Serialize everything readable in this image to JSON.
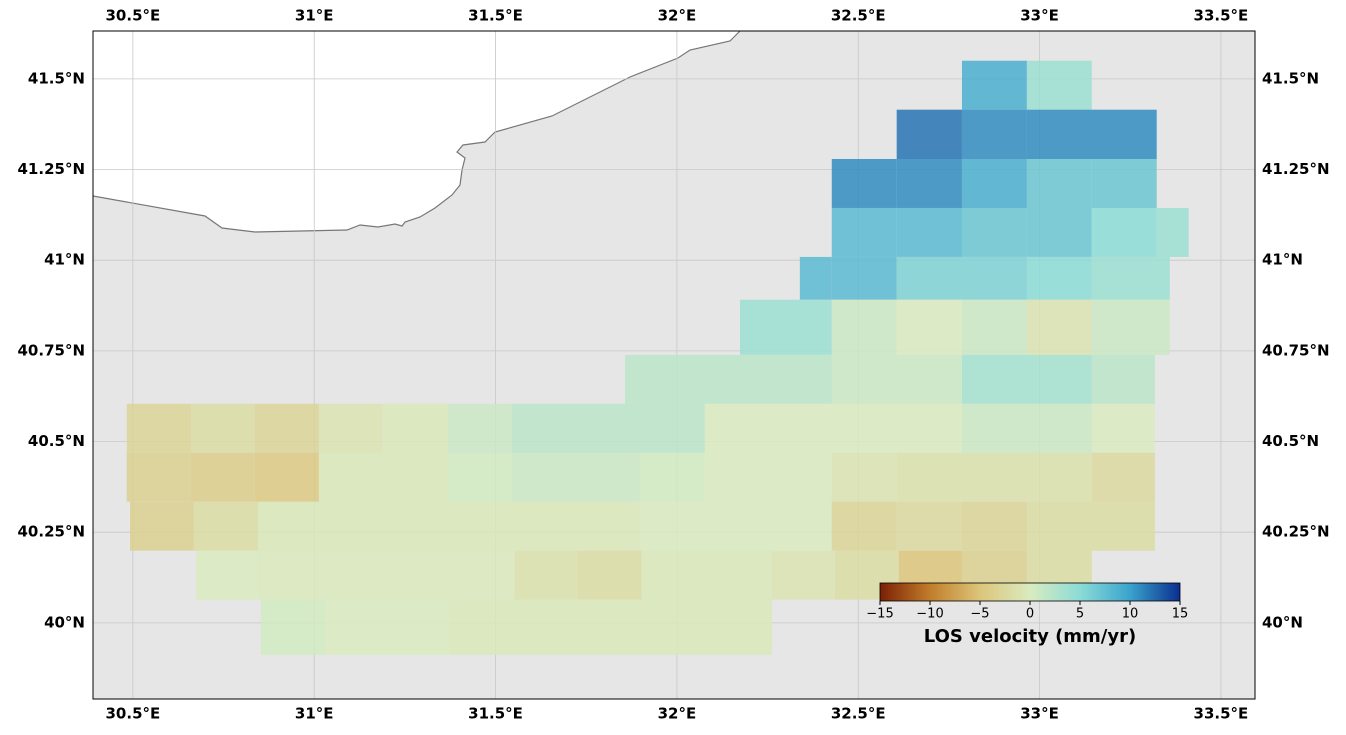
{
  "chart_data": {
    "type": "tilemap",
    "xlim": [
      30.39,
      33.594
    ],
    "ylim": [
      39.79,
      41.632
    ],
    "xticks": [
      {
        "value": 30.5,
        "label": "30.5°E"
      },
      {
        "value": 31,
        "label": "31°E"
      },
      {
        "value": 31.5,
        "label": "31.5°E"
      },
      {
        "value": 32,
        "label": "32°E"
      },
      {
        "value": 32.5,
        "label": "32.5°E"
      },
      {
        "value": 33,
        "label": "33°E"
      },
      {
        "value": 33.5,
        "label": "33.5°E"
      }
    ],
    "yticks": [
      {
        "value": 40,
        "label": "40°N"
      },
      {
        "value": 40.25,
        "label": "40.25°N"
      },
      {
        "value": 40.5,
        "label": "40.5°N"
      },
      {
        "value": 40.75,
        "label": "40.75°N"
      },
      {
        "value": 41,
        "label": "41°N"
      },
      {
        "value": 41.25,
        "label": "41.25°N"
      },
      {
        "value": 41.5,
        "label": "41.5°N"
      }
    ],
    "grid": true,
    "colormap": [
      "#7b2005",
      "#c17d2a",
      "#dcc57a",
      "#d9ebbf",
      "#8cdcd6",
      "#3aa3cd",
      "#0b2e8f"
    ],
    "clim": [
      -15,
      15
    ],
    "colorbar_ticks": [
      {
        "value": -15,
        "label": "−15"
      },
      {
        "value": -10,
        "label": "−10"
      },
      {
        "value": -5,
        "label": "−5"
      },
      0,
      5,
      10,
      15
    ],
    "colorbar_label": "LOS velocity (mm/yr)",
    "rows": [
      {
        "lat": [
          41.55,
          41.415
        ],
        "lon_edges": [
          32.786,
          32.965,
          33.144
        ],
        "values": [
          9,
          4
        ]
      },
      {
        "lat": [
          41.415,
          41.279
        ],
        "lon_edges": [
          32.606,
          32.786,
          32.965,
          33.323
        ],
        "values": [
          12,
          11,
          11
        ]
      },
      {
        "lat": [
          41.279,
          41.144
        ],
        "lon_edges": [
          32.427,
          32.606,
          32.786,
          32.965,
          33.144,
          33.323
        ],
        "values": [
          11,
          11,
          9,
          7,
          7
        ]
      },
      {
        "lat": [
          41.144,
          41.009
        ],
        "lon_edges": [
          32.427,
          32.606,
          32.786,
          32.965,
          33.144,
          33.323,
          33.411
        ],
        "values": [
          8,
          8,
          7,
          7,
          5,
          4
        ]
      },
      {
        "lat": [
          41.009,
          40.891
        ],
        "lon_edges": [
          32.339,
          32.427,
          32.606,
          32.786,
          32.965,
          33.144,
          33.359
        ],
        "values": [
          8,
          8,
          6,
          6,
          5,
          4
        ]
      },
      {
        "lat": [
          40.891,
          40.739
        ],
        "lon_edges": [
          32.174,
          32.427,
          32.606,
          32.786,
          32.965,
          33.144,
          33.359
        ],
        "values": [
          4,
          1,
          0,
          1,
          -1,
          1
        ]
      },
      {
        "lat": [
          40.739,
          40.604
        ],
        "lon_edges": [
          31.857,
          32.427,
          32.786,
          33.144,
          33.318
        ],
        "values": [
          2,
          1,
          3.5,
          2
        ]
      },
      {
        "lat": [
          40.604,
          40.469
        ],
        "lon_edges": [
          30.483,
          30.66,
          30.836,
          31.013,
          31.189,
          31.368,
          31.545,
          32.077,
          32.427,
          32.786,
          33.144,
          33.318
        ],
        "values": [
          -3,
          -2,
          -3,
          -1,
          -0.5,
          1,
          2,
          0,
          0,
          1,
          0
        ]
      },
      {
        "lat": [
          40.469,
          40.334
        ],
        "lon_edges": [
          30.483,
          30.66,
          30.836,
          31.013,
          31.368,
          31.545,
          31.898,
          32.077,
          32.427,
          32.606,
          32.965,
          33.144,
          33.318
        ],
        "values": [
          -3.5,
          -4,
          -4.5,
          -0.5,
          0.5,
          1,
          0.5,
          0,
          -1,
          -1.5,
          -1.5,
          -2.5
        ]
      },
      {
        "lat": [
          40.334,
          40.199
        ],
        "lon_edges": [
          30.492,
          30.668,
          30.845,
          31.898,
          32.427,
          32.606,
          32.786,
          32.965,
          33.318
        ],
        "values": [
          -3.5,
          -2,
          -0.5,
          0,
          -3,
          -2.5,
          -3,
          -2
        ]
      },
      {
        "lat": [
          40.199,
          40.064
        ],
        "lon_edges": [
          30.674,
          30.845,
          31.553,
          31.727,
          31.903,
          32.262,
          32.436,
          32.612,
          32.786,
          32.965,
          33.144
        ],
        "values": [
          0,
          -0.3,
          -1.5,
          -2,
          -0.5,
          -1,
          -2,
          -5,
          -3.5,
          -2
        ]
      },
      {
        "lat": [
          40.064,
          39.912
        ],
        "lon_edges": [
          30.853,
          31.029,
          31.374,
          32.262
        ],
        "values": [
          0.5,
          0,
          -0.5
        ]
      }
    ]
  }
}
